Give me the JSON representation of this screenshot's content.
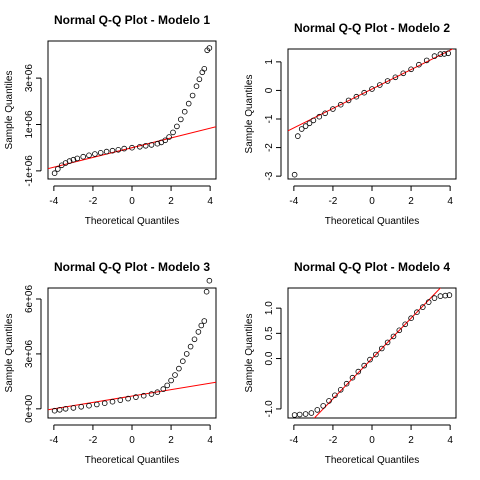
{
  "chart_data": [
    {
      "type": "scatter",
      "title": "Normal Q-Q Plot - Modelo 1",
      "xlabel": "Theoretical Quantiles",
      "ylabel": "Sample Quantiles",
      "xlim": [
        -4.3,
        4.3
      ],
      "ylim": [
        -1350000.0,
        4600000.0
      ],
      "xticks": [
        -4,
        -2,
        0,
        2,
        4
      ],
      "xtick_labels": [
        "-4",
        "-2",
        "0",
        "2",
        "4"
      ],
      "yticks": [
        -1000000.0,
        1000000.0,
        3000000.0
      ],
      "ytick_labels": [
        "-1e+06",
        "1e+06",
        "3e+06"
      ],
      "reference_line": {
        "color": "#ff0000",
        "slope": 210000,
        "intercept": 0
      },
      "points": [
        [
          -3.96,
          -1100000.0
        ],
        [
          -3.8,
          -920000.0
        ],
        [
          -3.6,
          -760000.0
        ],
        [
          -3.4,
          -660000.0
        ],
        [
          -3.2,
          -580000.0
        ],
        [
          -3.0,
          -520000.0
        ],
        [
          -2.8,
          -460000.0
        ],
        [
          -2.5,
          -390000.0
        ],
        [
          -2.2,
          -330000.0
        ],
        [
          -1.9,
          -270000.0
        ],
        [
          -1.6,
          -220000.0
        ],
        [
          -1.3,
          -170000.0
        ],
        [
          -1.0,
          -130000.0
        ],
        [
          -0.7,
          -90000.0
        ],
        [
          -0.4,
          -40000.0
        ],
        [
          0.0,
          0
        ],
        [
          0.4,
          40000.0
        ],
        [
          0.7,
          80000.0
        ],
        [
          1.0,
          120000.0
        ],
        [
          1.3,
          170000.0
        ],
        [
          1.5,
          230000.0
        ],
        [
          1.7,
          320000.0
        ],
        [
          1.9,
          460000.0
        ],
        [
          2.1,
          660000.0
        ],
        [
          2.3,
          920000.0
        ],
        [
          2.5,
          1220000.0
        ],
        [
          2.7,
          1550000.0
        ],
        [
          2.9,
          1900000.0
        ],
        [
          3.1,
          2250000.0
        ],
        [
          3.3,
          2650000.0
        ],
        [
          3.45,
          2950000.0
        ],
        [
          3.6,
          3250000.0
        ],
        [
          3.7,
          3400000.0
        ],
        [
          3.85,
          4200000.0
        ],
        [
          3.96,
          4300000.0
        ]
      ]
    },
    {
      "type": "scatter",
      "title": "Normal Q-Q Plot - Modelo 2",
      "xlabel": "Theoretical Quantiles",
      "ylabel": "Sample Quantiles",
      "xlim": [
        -4.3,
        4.3
      ],
      "ylim": [
        -3.1,
        1.45
      ],
      "xticks": [
        -4,
        -2,
        0,
        2,
        4
      ],
      "xtick_labels": [
        "-4",
        "-2",
        "0",
        "2",
        "4"
      ],
      "yticks": [
        -3,
        -2,
        -1,
        0,
        1
      ],
      "ytick_labels": [
        "-3",
        "-2",
        "-1",
        "0",
        "1"
      ],
      "reference_line": {
        "color": "#ff0000",
        "slope": 0.34,
        "intercept": 0.05
      },
      "points": [
        [
          -3.96,
          -2.95
        ],
        [
          -3.8,
          -1.6
        ],
        [
          -3.6,
          -1.35
        ],
        [
          -3.4,
          -1.25
        ],
        [
          -3.2,
          -1.15
        ],
        [
          -3.0,
          -1.05
        ],
        [
          -2.7,
          -0.92
        ],
        [
          -2.4,
          -0.8
        ],
        [
          -2.0,
          -0.65
        ],
        [
          -1.6,
          -0.5
        ],
        [
          -1.2,
          -0.35
        ],
        [
          -0.8,
          -0.22
        ],
        [
          -0.4,
          -0.08
        ],
        [
          0.0,
          0.05
        ],
        [
          0.4,
          0.19
        ],
        [
          0.8,
          0.33
        ],
        [
          1.2,
          0.46
        ],
        [
          1.6,
          0.6
        ],
        [
          2.0,
          0.74
        ],
        [
          2.4,
          0.9
        ],
        [
          2.8,
          1.05
        ],
        [
          3.2,
          1.2
        ],
        [
          3.5,
          1.27
        ],
        [
          3.7,
          1.28
        ],
        [
          3.9,
          1.3
        ]
      ]
    },
    {
      "type": "scatter",
      "title": "Normal Q-Q Plot - Modelo 3",
      "xlabel": "Theoretical Quantiles",
      "ylabel": "Sample Quantiles",
      "xlim": [
        -4.3,
        4.3
      ],
      "ylim": [
        -500000.0,
        6600000.0
      ],
      "xticks": [
        -4,
        -2,
        0,
        2,
        4
      ],
      "xtick_labels": [
        "-4",
        "-2",
        "0",
        "2",
        "4"
      ],
      "yticks": [
        0,
        3000000.0,
        6000000.0
      ],
      "ytick_labels": [
        "0e+00",
        "3e+06",
        "6e+06"
      ],
      "reference_line": {
        "color": "#ff0000",
        "slope": 175000,
        "intercept": 700000
      },
      "points": [
        [
          -3.96,
          -100000.0
        ],
        [
          -3.7,
          -50000.0
        ],
        [
          -3.4,
          0
        ],
        [
          -3.0,
          50000.0
        ],
        [
          -2.6,
          110000.0
        ],
        [
          -2.2,
          170000.0
        ],
        [
          -1.8,
          240000.0
        ],
        [
          -1.4,
          310000.0
        ],
        [
          -1.0,
          390000.0
        ],
        [
          -0.6,
          480000.0
        ],
        [
          -0.2,
          560000.0
        ],
        [
          0.2,
          640000.0
        ],
        [
          0.6,
          720000.0
        ],
        [
          1.0,
          810000.0
        ],
        [
          1.3,
          910000.0
        ],
        [
          1.6,
          1080000.0
        ],
        [
          1.8,
          1280000.0
        ],
        [
          2.0,
          1550000.0
        ],
        [
          2.2,
          1850000.0
        ],
        [
          2.4,
          2200000.0
        ],
        [
          2.6,
          2600000.0
        ],
        [
          2.8,
          3000000.0
        ],
        [
          3.0,
          3400000.0
        ],
        [
          3.2,
          3800000.0
        ],
        [
          3.4,
          4200000.0
        ],
        [
          3.55,
          4550000.0
        ],
        [
          3.7,
          4800000.0
        ],
        [
          3.82,
          6400000.0
        ],
        [
          3.96,
          7000000.0
        ]
      ]
    },
    {
      "type": "scatter",
      "title": "Normal Q-Q Plot - Modelo 4",
      "xlabel": "Theoretical Quantiles",
      "ylabel": "Sample Quantiles",
      "xlim": [
        -4.3,
        4.3
      ],
      "ylim": [
        -1.18,
        1.4
      ],
      "xticks": [
        -4,
        -2,
        0,
        2,
        4
      ],
      "xtick_labels": [
        "-4",
        "-2",
        "0",
        "2",
        "4"
      ],
      "yticks": [
        -1.0,
        0.0,
        0.5,
        1.0
      ],
      "ytick_labels": [
        "-1.0",
        "0.0",
        "0.5",
        "1.0"
      ],
      "reference_line": {
        "color": "#ff0000",
        "slope": 0.4,
        "intercept": 0.0
      },
      "points": [
        [
          -3.96,
          -1.12
        ],
        [
          -3.7,
          -1.11
        ],
        [
          -3.4,
          -1.1
        ],
        [
          -3.1,
          -1.08
        ],
        [
          -2.8,
          -1.02
        ],
        [
          -2.5,
          -0.94
        ],
        [
          -2.2,
          -0.84
        ],
        [
          -1.9,
          -0.73
        ],
        [
          -1.6,
          -0.62
        ],
        [
          -1.3,
          -0.5
        ],
        [
          -1.0,
          -0.38
        ],
        [
          -0.7,
          -0.26
        ],
        [
          -0.4,
          -0.14
        ],
        [
          -0.1,
          -0.02
        ],
        [
          0.2,
          0.08
        ],
        [
          0.5,
          0.2
        ],
        [
          0.8,
          0.32
        ],
        [
          1.1,
          0.44
        ],
        [
          1.4,
          0.56
        ],
        [
          1.7,
          0.68
        ],
        [
          2.0,
          0.8
        ],
        [
          2.3,
          0.92
        ],
        [
          2.6,
          1.02
        ],
        [
          2.9,
          1.12
        ],
        [
          3.2,
          1.2
        ],
        [
          3.5,
          1.24
        ],
        [
          3.75,
          1.25
        ],
        [
          3.96,
          1.26
        ]
      ]
    }
  ]
}
